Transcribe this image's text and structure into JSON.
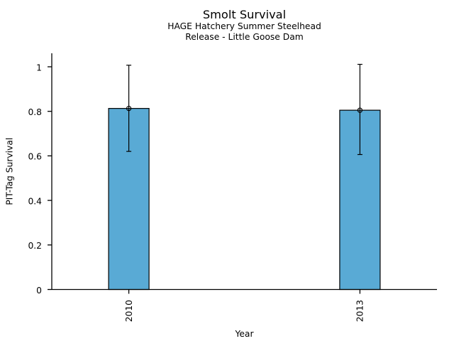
{
  "chart_data": {
    "type": "bar",
    "title": "Smolt Survival",
    "subtitle1": "HAGE Hatchery Summer Steelhead",
    "subtitle2": "Release - Little Goose Dam",
    "xlabel": "Year",
    "ylabel": "PIT-Tag Survival",
    "categories": [
      "2010",
      "2013"
    ],
    "series": [
      {
        "name": "PIT-Tag Survival",
        "values": [
          0.813,
          0.805
        ],
        "error_low": [
          0.62,
          0.606
        ],
        "error_high": [
          1.007,
          1.011
        ]
      }
    ],
    "yticks": [
      0,
      0.2,
      0.4,
      0.6,
      0.8,
      1
    ],
    "ytick_labels": [
      "0",
      "0.2",
      "0.4",
      "0.6",
      "0.8",
      "1"
    ],
    "ylim": [
      0,
      1.06
    ],
    "grid": false,
    "legend_position": null,
    "marker": "open-circle",
    "bar_color": "#59AAD5",
    "bar_border_color": "#000000",
    "axis_color": "#000000",
    "text_color": "#000000",
    "background_color": "#ffffff"
  }
}
